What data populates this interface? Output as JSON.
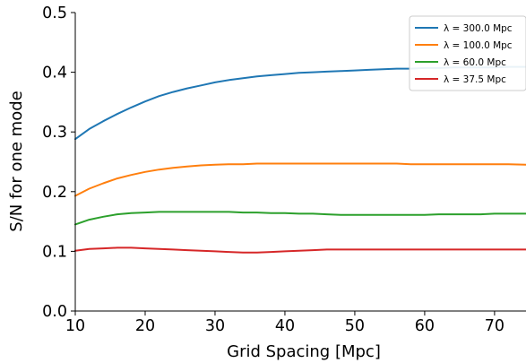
{
  "chart_data": {
    "type": "line",
    "title": "",
    "xlabel": "Grid Spacing [Mpc]",
    "ylabel": "S/N for one mode",
    "xlim": [
      10,
      74.5
    ],
    "ylim": [
      0.0,
      0.5
    ],
    "xticks": [
      10,
      20,
      30,
      40,
      50,
      60,
      70
    ],
    "yticks": [
      0.0,
      0.1,
      0.2,
      0.3,
      0.4,
      0.5
    ],
    "xtick_labels": [
      "10",
      "20",
      "30",
      "40",
      "50",
      "60",
      "70"
    ],
    "ytick_labels": [
      "0.0",
      "0.1",
      "0.2",
      "0.3",
      "0.4",
      "0.5"
    ],
    "grid": false,
    "legend_position": "top-right",
    "x": [
      10,
      12,
      14,
      16,
      18,
      20,
      22,
      24,
      26,
      28,
      30,
      32,
      34,
      36,
      38,
      40,
      42,
      44,
      46,
      48,
      50,
      52,
      54,
      56,
      58,
      60,
      62,
      64,
      66,
      68,
      70,
      72,
      74.5
    ],
    "series": [
      {
        "name": "λ = 300.0 Mpc",
        "color": "#1f77b4",
        "values": [
          0.288,
          0.305,
          0.318,
          0.33,
          0.341,
          0.351,
          0.36,
          0.367,
          0.373,
          0.378,
          0.383,
          0.387,
          0.39,
          0.393,
          0.395,
          0.397,
          0.399,
          0.4,
          0.401,
          0.402,
          0.403,
          0.404,
          0.405,
          0.406,
          0.406,
          0.407,
          0.407,
          0.408,
          0.408,
          0.408,
          0.408,
          0.409,
          0.409
        ]
      },
      {
        "name": "λ = 100.0 Mpc",
        "color": "#ff7f0e",
        "values": [
          0.193,
          0.205,
          0.214,
          0.222,
          0.228,
          0.233,
          0.237,
          0.24,
          0.242,
          0.244,
          0.245,
          0.246,
          0.246,
          0.247,
          0.247,
          0.247,
          0.247,
          0.247,
          0.247,
          0.247,
          0.247,
          0.247,
          0.247,
          0.247,
          0.246,
          0.246,
          0.246,
          0.246,
          0.246,
          0.246,
          0.246,
          0.246,
          0.245
        ]
      },
      {
        "name": "λ = 60.0 Mpc",
        "color": "#2ca02c",
        "values": [
          0.145,
          0.153,
          0.158,
          0.162,
          0.164,
          0.165,
          0.166,
          0.166,
          0.166,
          0.166,
          0.166,
          0.166,
          0.165,
          0.165,
          0.164,
          0.164,
          0.163,
          0.163,
          0.162,
          0.161,
          0.161,
          0.161,
          0.161,
          0.161,
          0.161,
          0.161,
          0.162,
          0.162,
          0.162,
          0.162,
          0.163,
          0.163,
          0.163
        ]
      },
      {
        "name": "λ = 37.5 Mpc",
        "color": "#d62728",
        "values": [
          0.101,
          0.104,
          0.105,
          0.106,
          0.106,
          0.105,
          0.104,
          0.103,
          0.102,
          0.101,
          0.1,
          0.099,
          0.098,
          0.098,
          0.099,
          0.1,
          0.101,
          0.102,
          0.103,
          0.103,
          0.103,
          0.103,
          0.103,
          0.103,
          0.103,
          0.103,
          0.103,
          0.103,
          0.103,
          0.103,
          0.103,
          0.103,
          0.103
        ]
      }
    ]
  }
}
